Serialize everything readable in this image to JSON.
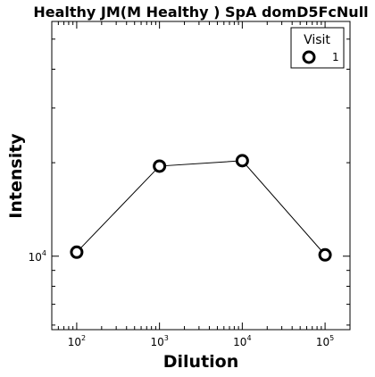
{
  "chart_data": {
    "type": "line",
    "title": "Healthy JM(M Healthy ) SpA domD5FcNull",
    "xlabel": "Dilution",
    "ylabel": "Intensity",
    "x_scale": "log",
    "y_scale": "log",
    "xlim": [
      50,
      200000
    ],
    "ylim": [
      5800,
      57000
    ],
    "x_ticks": [
      {
        "base": "10",
        "exp": "2",
        "value": 100
      },
      {
        "base": "10",
        "exp": "3",
        "value": 1000
      },
      {
        "base": "10",
        "exp": "4",
        "value": 10000
      },
      {
        "base": "10",
        "exp": "5",
        "value": 100000
      }
    ],
    "y_ticks": [
      {
        "base": "10",
        "exp": "4",
        "value": 10000
      }
    ],
    "grid": false,
    "legend": {
      "title": "Visit",
      "position": "top-right",
      "entries": [
        "1"
      ]
    },
    "series": [
      {
        "name": "1",
        "x": [
          100,
          1000,
          10000,
          100000
        ],
        "y": [
          10300,
          19500,
          20300,
          10100
        ],
        "marker": "open-circle",
        "color": "#000000"
      }
    ]
  }
}
